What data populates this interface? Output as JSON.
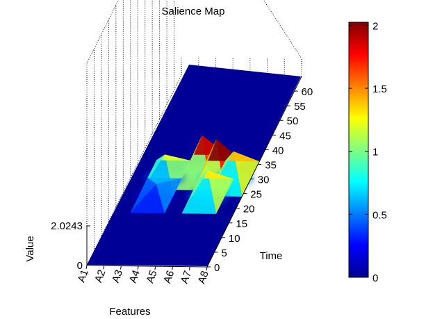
{
  "chart_data": {
    "type": "surface",
    "title": "Salience Map",
    "xlabel": "Features",
    "ylabel": "Time",
    "zlabel": "Value",
    "x_categories": [
      "A1",
      "A2",
      "A3",
      "A4",
      "A5",
      "A6",
      "A7",
      "A8"
    ],
    "y_ticks": [
      "0",
      "5",
      "10",
      "15",
      "20",
      "25",
      "30",
      "35",
      "40",
      "45",
      "50",
      "55",
      "60"
    ],
    "y_range": [
      0,
      65
    ],
    "z_ticks": [
      "0",
      "2.0243"
    ],
    "z_range": [
      0,
      2.0243
    ],
    "grid": true,
    "colormap": "jet",
    "colorbar": {
      "ticks": [
        "0",
        "0.5",
        "1",
        "1.5",
        "2"
      ],
      "range": [
        0,
        2.0243
      ]
    },
    "peaks": [
      {
        "feature": "A3",
        "time": 30,
        "value": 1.2
      },
      {
        "feature": "A3",
        "time": 24,
        "value": 0.6
      },
      {
        "feature": "A5",
        "time": 32,
        "value": 1.9
      },
      {
        "feature": "A6",
        "time": 30,
        "value": 2.02
      },
      {
        "feature": "A6",
        "time": 24,
        "value": 1.3
      },
      {
        "feature": "A7",
        "time": 30,
        "value": 1.4
      }
    ],
    "baseline_value": 0
  },
  "colors": {
    "surface_base": "#000096",
    "gridline": "#000000"
  }
}
